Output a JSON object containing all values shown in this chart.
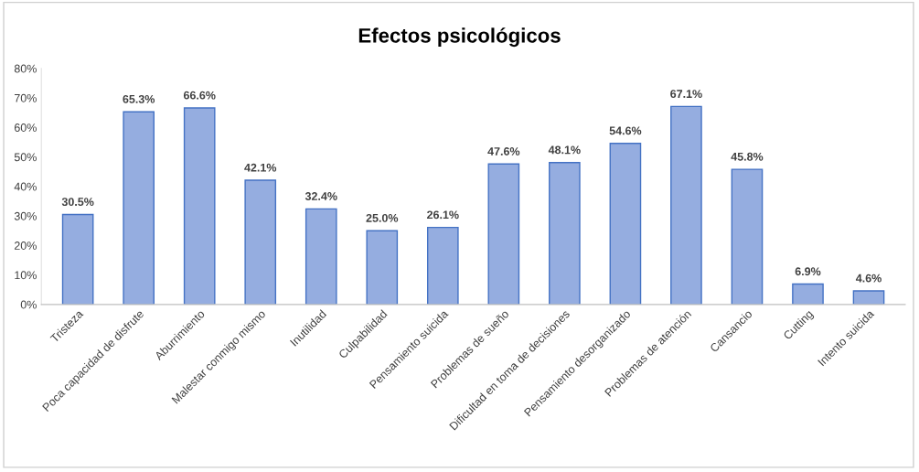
{
  "chart_data": {
    "type": "bar",
    "title": "Efectos psicológicos",
    "categories": [
      "Tristeza",
      "Poca capacidad de disfrute",
      "Aburrimiento",
      "Malestar conmigo mismo",
      "Inutilidad",
      "Culpabilidad",
      "Pensamiento suicida",
      "Problemas de sueño",
      "Dificultad en toma de decisiones",
      "Pensamiento desorganizado",
      "Problemas de atención",
      "Cansancio",
      "Cutting",
      "Intento suicida"
    ],
    "values": [
      30.5,
      65.3,
      66.6,
      42.1,
      32.4,
      25.0,
      26.1,
      47.6,
      48.1,
      54.6,
      67.1,
      45.8,
      6.9,
      4.6
    ],
    "value_labels": [
      "30.5%",
      "65.3%",
      "66.6%",
      "42.1%",
      "32.4%",
      "25.0%",
      "26.1%",
      "47.6%",
      "48.1%",
      "54.6%",
      "67.1%",
      "45.8%",
      "6.9%",
      "4.6%"
    ],
    "color": "#95ade0",
    "ylim": [
      0,
      80
    ],
    "yticks": [
      {
        "value": 0,
        "label": "0%"
      },
      {
        "value": 10,
        "label": "10%"
      },
      {
        "value": 20,
        "label": "20%"
      },
      {
        "value": 30,
        "label": "30%"
      },
      {
        "value": 40,
        "label": "40%"
      },
      {
        "value": 50,
        "label": "50%"
      },
      {
        "value": 60,
        "label": "60%"
      },
      {
        "value": 70,
        "label": "70%"
      },
      {
        "value": 80,
        "label": "80%"
      }
    ],
    "grid": false
  }
}
